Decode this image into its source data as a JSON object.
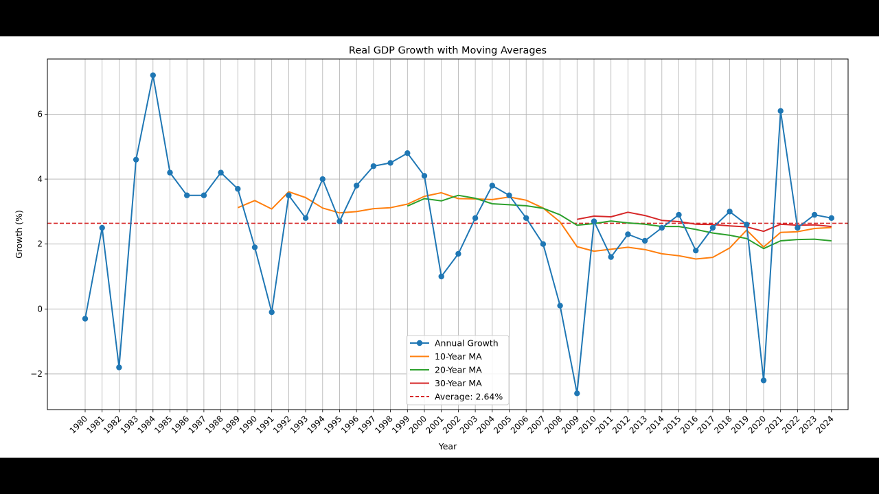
{
  "chart_data": {
    "type": "line",
    "title": "Real GDP Growth with Moving Averages",
    "xlabel": "Year",
    "ylabel": "Growth (%)",
    "ylim": [
      -3.1,
      7.7
    ],
    "yticks": [
      -2,
      0,
      2,
      4,
      6
    ],
    "ytick_labels": [
      "−2",
      "0",
      "2",
      "4",
      "6"
    ],
    "grid": true,
    "legend_position": "lower center",
    "x": [
      1980,
      1981,
      1982,
      1983,
      1984,
      1985,
      1986,
      1987,
      1988,
      1989,
      1990,
      1991,
      1992,
      1993,
      1994,
      1995,
      1996,
      1997,
      1998,
      1999,
      2000,
      2001,
      2002,
      2003,
      2004,
      2005,
      2006,
      2007,
      2008,
      2009,
      2010,
      2011,
      2012,
      2013,
      2014,
      2015,
      2016,
      2017,
      2018,
      2019,
      2020,
      2021,
      2022,
      2023,
      2024
    ],
    "series": [
      {
        "name": "Annual Growth",
        "color": "#1f77b4",
        "marker": "circle",
        "values": [
          -0.3,
          2.5,
          -1.8,
          4.6,
          7.2,
          4.2,
          3.5,
          3.5,
          4.2,
          3.7,
          1.9,
          -0.1,
          3.5,
          2.8,
          4.0,
          2.7,
          3.8,
          4.4,
          4.5,
          4.8,
          4.1,
          1.0,
          1.7,
          2.8,
          3.8,
          3.5,
          2.8,
          2.0,
          0.1,
          -2.6,
          2.7,
          1.6,
          2.3,
          2.1,
          2.5,
          2.9,
          1.8,
          2.5,
          3.0,
          2.6,
          -2.2,
          6.1,
          2.5,
          2.9,
          2.8
        ]
      },
      {
        "name": "10-Year MA",
        "color": "#ff7f0e",
        "values": [
          null,
          null,
          null,
          null,
          null,
          null,
          null,
          null,
          null,
          3.12,
          3.34,
          3.08,
          3.61,
          3.43,
          3.11,
          2.96,
          3.0,
          3.09,
          3.12,
          3.23,
          3.47,
          3.58,
          3.4,
          3.39,
          3.37,
          3.45,
          3.35,
          3.11,
          2.68,
          1.92,
          1.78,
          1.84,
          1.9,
          1.83,
          1.7,
          1.64,
          1.54,
          1.59,
          1.88,
          2.43,
          1.91,
          2.36,
          2.38,
          2.48,
          2.51
        ]
      },
      {
        "name": "20-Year MA",
        "color": "#2ca02c",
        "values": [
          null,
          null,
          null,
          null,
          null,
          null,
          null,
          null,
          null,
          null,
          null,
          null,
          null,
          null,
          null,
          null,
          null,
          null,
          null,
          3.17,
          3.4,
          3.33,
          3.5,
          3.41,
          3.24,
          3.21,
          3.18,
          3.1,
          2.9,
          2.58,
          2.63,
          2.71,
          2.65,
          2.61,
          2.54,
          2.54,
          2.45,
          2.34,
          2.27,
          2.17,
          1.86,
          2.1,
          2.14,
          2.15,
          2.1
        ]
      },
      {
        "name": "30-Year MA",
        "color": "#d62728",
        "values": [
          null,
          null,
          null,
          null,
          null,
          null,
          null,
          null,
          null,
          null,
          null,
          null,
          null,
          null,
          null,
          null,
          null,
          null,
          null,
          null,
          null,
          null,
          null,
          null,
          null,
          null,
          null,
          null,
          null,
          2.76,
          2.86,
          2.84,
          2.98,
          2.88,
          2.73,
          2.69,
          2.61,
          2.6,
          2.56,
          2.53,
          2.39,
          2.61,
          2.58,
          2.59,
          2.54
        ]
      }
    ],
    "reference_line": {
      "name": "Average: 2.64%",
      "value": 2.64,
      "color": "#d62728",
      "style": "dashed"
    }
  }
}
